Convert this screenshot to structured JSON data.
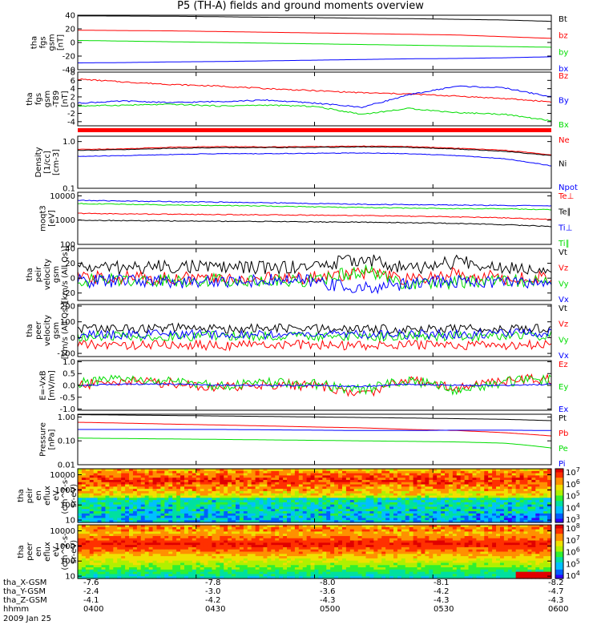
{
  "title": "P5 (TH-A) fields and ground moments overview",
  "colors": {
    "black": "#000000",
    "red": "#ff0000",
    "green": "#00dd00",
    "blue": "#0000ff"
  },
  "chart_data": [
    {
      "type": "line",
      "ylabel": [
        "tha",
        "fgs",
        "gsm",
        "[nT]"
      ],
      "ylim": [
        -40,
        40
      ],
      "yticks": [
        "40",
        "20",
        "0",
        "-20",
        "-40"
      ],
      "ytick_values": [
        40,
        20,
        0,
        -20,
        -40
      ],
      "series": [
        {
          "name": "Bt",
          "color": "#000000",
          "values": [
            39,
            38.8,
            38.5,
            37.8,
            37,
            36.5,
            35.5,
            35,
            34,
            33,
            31
          ]
        },
        {
          "name": "bz",
          "color": "#ff0000",
          "values": [
            18,
            17.5,
            17,
            16,
            15,
            14,
            13,
            12,
            11,
            8.5,
            6
          ]
        },
        {
          "name": "by",
          "color": "#00dd00",
          "values": [
            3,
            2,
            1,
            0,
            -1,
            -2,
            -3,
            -4,
            -5,
            -6,
            -7
          ]
        },
        {
          "name": "bx",
          "color": "#0000ff",
          "values": [
            -30,
            -29.5,
            -28.5,
            -28,
            -27,
            -26,
            -25,
            -24,
            -23.5,
            -22.5,
            -21
          ]
        }
      ]
    },
    {
      "type": "line",
      "ylabel": [
        "tha",
        "fgs",
        "gsm",
        "-T89",
        "[nT]"
      ],
      "ylim": [
        -5,
        8
      ],
      "yticks": [
        "8",
        "6",
        "4",
        "2",
        "0",
        "-2",
        "-4"
      ],
      "ytick_values": [
        8,
        6,
        4,
        2,
        0,
        -2,
        -4
      ],
      "series": [
        {
          "name": "Bz",
          "color": "#ff0000",
          "values": [
            6.3,
            5.6,
            5,
            4.6,
            4,
            3.5,
            3,
            2.7,
            2.2,
            1.6,
            0.8
          ]
        },
        {
          "name": "By",
          "color": "#0000ff",
          "values": [
            0.5,
            1,
            0.6,
            0.9,
            1.2,
            0.5,
            -0.5,
            2.5,
            4.6,
            4.2,
            2
          ]
        },
        {
          "name": "Bx",
          "color": "#00dd00",
          "values": [
            -0.2,
            0,
            0.2,
            -0.2,
            0,
            -0.3,
            -2.2,
            -0.8,
            -1.8,
            -2.2,
            -3.8
          ]
        }
      ]
    },
    {
      "type": "line",
      "ylabel": [
        "Density",
        "[1/cc]",
        "[cm-3]"
      ],
      "scale": "log",
      "ylim": [
        0.1,
        1.3
      ],
      "yticks": [
        "1.0",
        "0.1"
      ],
      "ytick_values": [
        1.0,
        0.1
      ],
      "series": [
        {
          "name": "Ne",
          "color": "#ff0000",
          "values": [
            0.68,
            0.7,
            0.76,
            0.78,
            0.77,
            0.78,
            0.8,
            0.78,
            0.72,
            0.65,
            0.52
          ]
        },
        {
          "name": "Ni",
          "color": "#000000",
          "values": [
            0.65,
            0.67,
            0.72,
            0.74,
            0.74,
            0.75,
            0.77,
            0.75,
            0.69,
            0.62,
            0.5
          ]
        },
        {
          "name": "Npot",
          "color": "#0000ff",
          "values": [
            0.48,
            0.5,
            0.53,
            0.55,
            0.55,
            0.56,
            0.57,
            0.55,
            0.5,
            0.43,
            0.3
          ]
        }
      ]
    },
    {
      "type": "line",
      "ylabel": [
        "moqt3",
        "[eV]"
      ],
      "scale": "log",
      "ylim": [
        100,
        14000
      ],
      "yticks": [
        "10000",
        "1000",
        "100"
      ],
      "ytick_values": [
        10000,
        1000,
        100
      ],
      "series": [
        {
          "name": "Te⊥",
          "color": "#ff0000",
          "values": [
            1900,
            1800,
            1750,
            1700,
            1650,
            1600,
            1550,
            1450,
            1350,
            1250,
            1050
          ]
        },
        {
          "name": "Te∥",
          "color": "#000000",
          "values": [
            1000,
            950,
            920,
            900,
            880,
            850,
            820,
            780,
            730,
            650,
            550
          ]
        },
        {
          "name": "Ti⊥",
          "color": "#0000ff",
          "values": [
            6500,
            6100,
            5800,
            5500,
            5200,
            4800,
            4500,
            4300,
            4200,
            4000,
            3900
          ]
        },
        {
          "name": "Ti∥",
          "color": "#00dd00",
          "values": [
            4800,
            4500,
            4200,
            4000,
            3800,
            3500,
            3300,
            3100,
            3000,
            2900,
            2700
          ]
        }
      ]
    },
    {
      "type": "line",
      "ylabel": [
        "tha",
        "peir",
        "velocity",
        "gsm",
        "[km/s (All Qs)]"
      ],
      "ylim": [
        -30,
        40
      ],
      "yticks": [
        "40",
        "20",
        "0",
        "-20"
      ],
      "ytick_values": [
        40,
        20,
        0,
        -20
      ],
      "series": [
        {
          "name": "Vt",
          "color": "#000000",
          "values": [
            15,
            14,
            16,
            15,
            14,
            16,
            26,
            12,
            22,
            15,
            14
          ]
        },
        {
          "name": "Vz",
          "color": "#ff0000",
          "values": [
            0,
            1,
            0,
            -1,
            0,
            1,
            8,
            -3,
            6,
            0,
            1
          ]
        },
        {
          "name": "Vy",
          "color": "#00dd00",
          "values": [
            -3,
            -2,
            -3,
            -2,
            -4,
            -3,
            10,
            -8,
            -5,
            -3,
            -6
          ]
        },
        {
          "name": "Vx",
          "color": "#0000ff",
          "values": [
            -4,
            -3,
            -5,
            -4,
            -3,
            -4,
            -15,
            -6,
            -4,
            -5,
            -7
          ]
        }
      ]
    },
    {
      "type": "line",
      "ylabel": [
        "tha",
        "peer",
        "velocity",
        "gsm",
        "[km/s (All Qs)]"
      ],
      "ylim": [
        -120,
        210
      ],
      "yticks": [
        "200",
        "100",
        "0",
        "-100"
      ],
      "ytick_values": [
        200,
        100,
        0,
        -100
      ],
      "series": [
        {
          "name": "Vt",
          "color": "#000000",
          "values": [
            60,
            55,
            60,
            55,
            58,
            55,
            52,
            56,
            55,
            58,
            55
          ]
        },
        {
          "name": "Vz",
          "color": "#ff0000",
          "values": [
            -45,
            -48,
            -45,
            -50,
            -45,
            -48,
            -50,
            -45,
            -48,
            -50,
            -45
          ]
        },
        {
          "name": "Vy",
          "color": "#00dd00",
          "values": [
            5,
            10,
            6,
            12,
            8,
            10,
            6,
            9,
            8,
            10,
            12
          ]
        },
        {
          "name": "Vx",
          "color": "#0000ff",
          "values": [
            15,
            20,
            18,
            22,
            20,
            18,
            25,
            20,
            22,
            24,
            30
          ]
        }
      ]
    },
    {
      "type": "line",
      "ylabel": [
        "E=-VxB",
        "[mV/m]"
      ],
      "ylim": [
        -1.05,
        1.05
      ],
      "yticks": [
        "1.0",
        "0.5",
        "0.0",
        "-0.5",
        "-1.0"
      ],
      "ytick_values": [
        1.0,
        0.5,
        0.0,
        -0.5,
        -1.0
      ],
      "series": [
        {
          "name": "Ez",
          "color": "#ff0000",
          "values": [
            0,
            0.2,
            0.1,
            -0.1,
            0.05,
            0,
            -0.4,
            0.3,
            -0.1,
            0.2,
            0.3
          ]
        },
        {
          "name": "Ey",
          "color": "#00dd00",
          "values": [
            0.1,
            0.25,
            0.15,
            0,
            0.1,
            0.05,
            -0.2,
            0.25,
            -0.2,
            0.15,
            0.25
          ]
        },
        {
          "name": "Ex",
          "color": "#0000ff",
          "values": [
            0,
            0.05,
            0.05,
            0,
            0,
            0,
            -0.05,
            0.05,
            0,
            0,
            0.05
          ]
        }
      ]
    },
    {
      "type": "line",
      "ylabel": [
        "Pressure",
        "[nPa]"
      ],
      "scale": "log",
      "ylim": [
        0.01,
        1.3
      ],
      "yticks": [
        "1.00",
        "0.10",
        "0.01"
      ],
      "ytick_values": [
        1.0,
        0.1,
        0.01
      ],
      "series": [
        {
          "name": "Pt",
          "color": "#000000",
          "values": [
            1.25,
            1.2,
            1.15,
            1.1,
            1.05,
            1.0,
            0.95,
            0.9,
            0.85,
            0.8,
            0.7
          ]
        },
        {
          "name": "Pb",
          "color": "#ff0000",
          "values": [
            0.6,
            0.55,
            0.5,
            0.46,
            0.42,
            0.38,
            0.35,
            0.3,
            0.27,
            0.22,
            0.16
          ]
        },
        {
          "name": "Pe",
          "color": "#00dd00",
          "values": [
            0.13,
            0.125,
            0.12,
            0.115,
            0.11,
            0.105,
            0.1,
            0.095,
            0.09,
            0.08,
            0.05
          ]
        },
        {
          "name": "Pi",
          "color": "#0000ff",
          "values": [
            0.3,
            0.3,
            0.3,
            0.3,
            0.29,
            0.28,
            0.27,
            0.27,
            0.28,
            0.28,
            0.27
          ]
        }
      ]
    },
    {
      "type": "heatmap",
      "ylabel": [
        "tha",
        "peir",
        "en",
        "eflux",
        "eV",
        "(cm^2-s-",
        "sr-eV)"
      ],
      "scale": "log",
      "ylim": [
        7,
        25000
      ],
      "yticks": [
        "10000",
        "1000",
        "100",
        "10"
      ],
      "ytick_values": [
        10000,
        1000,
        100,
        10
      ],
      "colorbar": {
        "ticks": [
          "10",
          "10",
          "10",
          "10",
          "10"
        ],
        "exponents": [
          "7",
          "6",
          "5",
          "4",
          "3"
        ],
        "range": [
          1000,
          10000000
        ]
      }
    },
    {
      "type": "heatmap",
      "ylabel": [
        "tha",
        "peer",
        "en",
        "eflux",
        "eV",
        "(cm^2-s-",
        "sr-eV)"
      ],
      "scale": "log",
      "ylim": [
        7,
        25000
      ],
      "yticks": [
        "10000",
        "1000",
        "100",
        "10"
      ],
      "ytick_values": [
        10000,
        1000,
        100,
        10
      ],
      "colorbar": {
        "ticks": [
          "10",
          "10",
          "10",
          "10",
          "10"
        ],
        "exponents": [
          "8",
          "7",
          "6",
          "5",
          "4"
        ],
        "range": [
          10000,
          100000000
        ]
      }
    }
  ],
  "ephemeris": {
    "rows": [
      {
        "label": "tha_X-GSM",
        "values": [
          "-7.6",
          "-7.8",
          "-8.0",
          "-8.1",
          "-8.2"
        ]
      },
      {
        "label": "tha_Y-GSM",
        "values": [
          "-2.4",
          "-3.0",
          "-3.6",
          "-4.2",
          "-4.7"
        ]
      },
      {
        "label": "tha_Z-GSM",
        "values": [
          "-4.1",
          "-4.2",
          "-4.3",
          "-4.3",
          "-4.3"
        ]
      },
      {
        "label": "hhmm",
        "values": [
          "0400",
          "0430",
          "0500",
          "0530",
          "0600"
        ]
      }
    ],
    "date": "2009 Jan 25"
  }
}
